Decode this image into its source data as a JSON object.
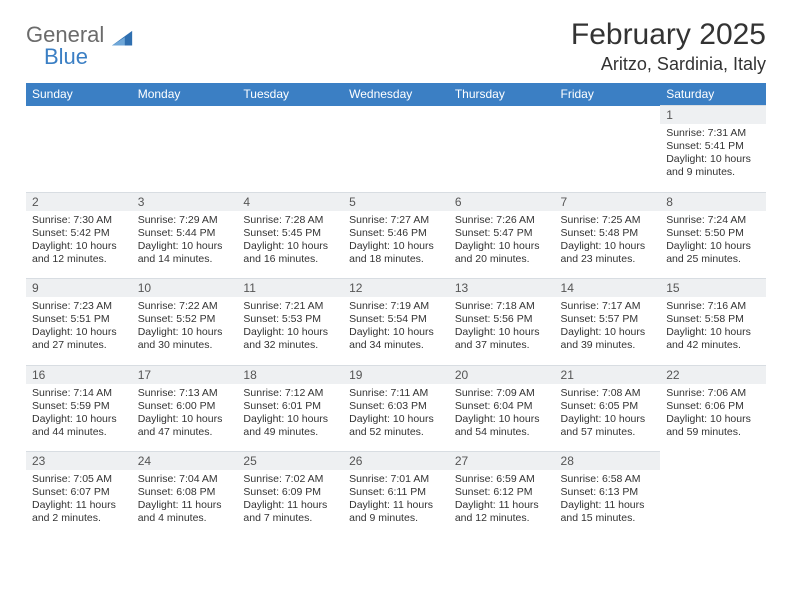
{
  "logo": {
    "part1": "General",
    "part2": "Blue",
    "sail_color": "#2f6fb0"
  },
  "title": "February 2025",
  "location": "Aritzo, Sardinia, Italy",
  "header_bg": "#3b7fc4",
  "daynum_bg": "#eef0f2",
  "weekdays": [
    "Sunday",
    "Monday",
    "Tuesday",
    "Wednesday",
    "Thursday",
    "Friday",
    "Saturday"
  ],
  "weeks": [
    {
      "nums": [
        "",
        "",
        "",
        "",
        "",
        "",
        "1"
      ],
      "cells": [
        "",
        "",
        "",
        "",
        "",
        "",
        "Sunrise: 7:31 AM\nSunset: 5:41 PM\nDaylight: 10 hours and 9 minutes."
      ]
    },
    {
      "nums": [
        "2",
        "3",
        "4",
        "5",
        "6",
        "7",
        "8"
      ],
      "cells": [
        "Sunrise: 7:30 AM\nSunset: 5:42 PM\nDaylight: 10 hours and 12 minutes.",
        "Sunrise: 7:29 AM\nSunset: 5:44 PM\nDaylight: 10 hours and 14 minutes.",
        "Sunrise: 7:28 AM\nSunset: 5:45 PM\nDaylight: 10 hours and 16 minutes.",
        "Sunrise: 7:27 AM\nSunset: 5:46 PM\nDaylight: 10 hours and 18 minutes.",
        "Sunrise: 7:26 AM\nSunset: 5:47 PM\nDaylight: 10 hours and 20 minutes.",
        "Sunrise: 7:25 AM\nSunset: 5:48 PM\nDaylight: 10 hours and 23 minutes.",
        "Sunrise: 7:24 AM\nSunset: 5:50 PM\nDaylight: 10 hours and 25 minutes."
      ]
    },
    {
      "nums": [
        "9",
        "10",
        "11",
        "12",
        "13",
        "14",
        "15"
      ],
      "cells": [
        "Sunrise: 7:23 AM\nSunset: 5:51 PM\nDaylight: 10 hours and 27 minutes.",
        "Sunrise: 7:22 AM\nSunset: 5:52 PM\nDaylight: 10 hours and 30 minutes.",
        "Sunrise: 7:21 AM\nSunset: 5:53 PM\nDaylight: 10 hours and 32 minutes.",
        "Sunrise: 7:19 AM\nSunset: 5:54 PM\nDaylight: 10 hours and 34 minutes.",
        "Sunrise: 7:18 AM\nSunset: 5:56 PM\nDaylight: 10 hours and 37 minutes.",
        "Sunrise: 7:17 AM\nSunset: 5:57 PM\nDaylight: 10 hours and 39 minutes.",
        "Sunrise: 7:16 AM\nSunset: 5:58 PM\nDaylight: 10 hours and 42 minutes."
      ]
    },
    {
      "nums": [
        "16",
        "17",
        "18",
        "19",
        "20",
        "21",
        "22"
      ],
      "cells": [
        "Sunrise: 7:14 AM\nSunset: 5:59 PM\nDaylight: 10 hours and 44 minutes.",
        "Sunrise: 7:13 AM\nSunset: 6:00 PM\nDaylight: 10 hours and 47 minutes.",
        "Sunrise: 7:12 AM\nSunset: 6:01 PM\nDaylight: 10 hours and 49 minutes.",
        "Sunrise: 7:11 AM\nSunset: 6:03 PM\nDaylight: 10 hours and 52 minutes.",
        "Sunrise: 7:09 AM\nSunset: 6:04 PM\nDaylight: 10 hours and 54 minutes.",
        "Sunrise: 7:08 AM\nSunset: 6:05 PM\nDaylight: 10 hours and 57 minutes.",
        "Sunrise: 7:06 AM\nSunset: 6:06 PM\nDaylight: 10 hours and 59 minutes."
      ]
    },
    {
      "nums": [
        "23",
        "24",
        "25",
        "26",
        "27",
        "28",
        ""
      ],
      "cells": [
        "Sunrise: 7:05 AM\nSunset: 6:07 PM\nDaylight: 11 hours and 2 minutes.",
        "Sunrise: 7:04 AM\nSunset: 6:08 PM\nDaylight: 11 hours and 4 minutes.",
        "Sunrise: 7:02 AM\nSunset: 6:09 PM\nDaylight: 11 hours and 7 minutes.",
        "Sunrise: 7:01 AM\nSunset: 6:11 PM\nDaylight: 11 hours and 9 minutes.",
        "Sunrise: 6:59 AM\nSunset: 6:12 PM\nDaylight: 11 hours and 12 minutes.",
        "Sunrise: 6:58 AM\nSunset: 6:13 PM\nDaylight: 11 hours and 15 minutes.",
        ""
      ]
    }
  ]
}
